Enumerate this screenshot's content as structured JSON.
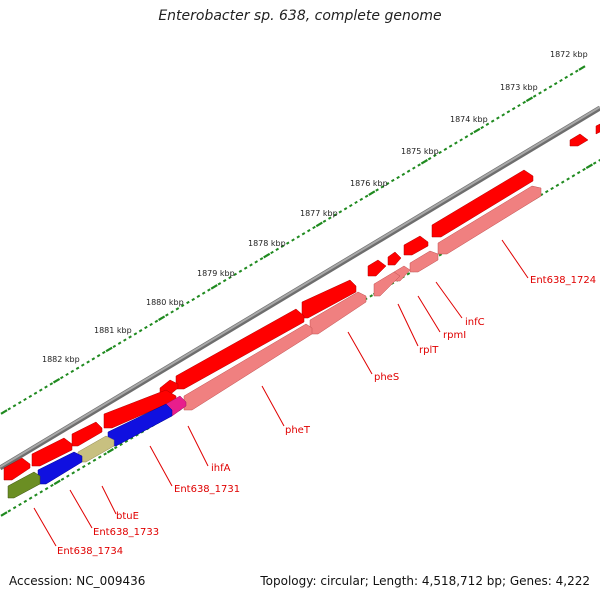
{
  "title": "Enterobacter sp. 638, complete genome",
  "footer": {
    "accession": "Accession: NC_009436",
    "summary": "Topology: circular; Length: 4,518,712 bp; Genes: 4,222"
  },
  "colors": {
    "backbone": "#8a8a8a",
    "tick": "#1f8a1f",
    "gene_forward": "#ff0000",
    "gene_reverse": "#f08080",
    "label": "#e00000",
    "blue_gene": "#1010e0",
    "olive_gene": "#c8c080",
    "dark_olive_gene": "#6b8e23",
    "magenta_gene": "#e81e8c"
  },
  "kbp_labels": [
    "1872 kbp",
    "1873 kbp",
    "1874 kbp",
    "1875 kbp",
    "1876 kbp",
    "1877 kbp",
    "1878 kbp",
    "1879 kbp",
    "1880 kbp",
    "1881 kbp",
    "1882 kbp"
  ],
  "gene_labels": [
    "Ent638_1724",
    "infC",
    "rpmI",
    "rplT",
    "pheS",
    "pheT",
    "ihfA",
    "Ent638_1731",
    "btuE",
    "Ent638_1733",
    "Ent638_1734"
  ]
}
